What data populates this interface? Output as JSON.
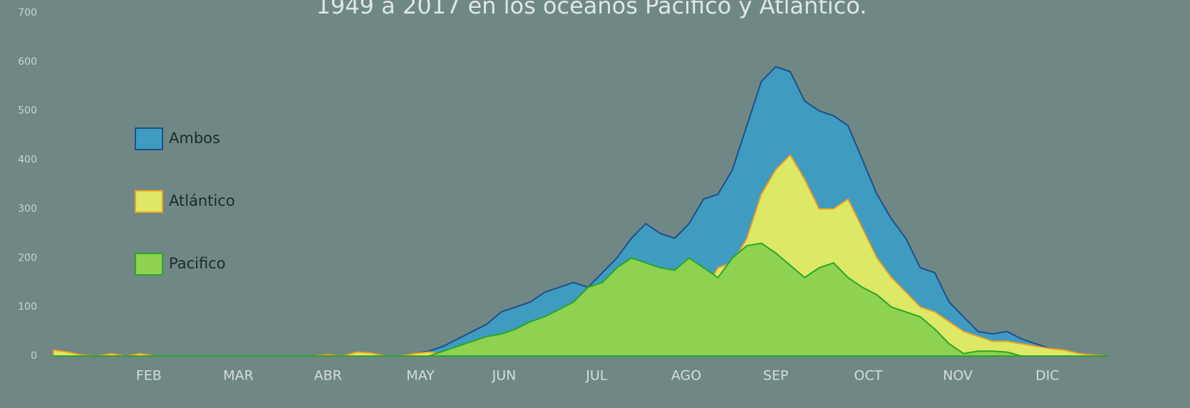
{
  "chart_data": {
    "type": "area",
    "title": "1949 a 2017 en los océanos Pacífico y Atlántico.",
    "x": [
      1,
      6,
      11,
      16,
      21,
      26,
      31,
      36,
      41,
      46,
      51,
      56,
      61,
      66,
      71,
      76,
      81,
      86,
      91,
      96,
      101,
      106,
      111,
      116,
      121,
      126,
      131,
      136,
      141,
      146,
      151,
      156,
      161,
      166,
      171,
      176,
      181,
      186,
      191,
      196,
      201,
      206,
      211,
      216,
      221,
      226,
      231,
      236,
      241,
      246,
      251,
      256,
      261,
      266,
      271,
      276,
      281,
      286,
      291,
      296,
      301,
      306,
      311,
      316,
      321,
      326,
      331,
      336,
      341,
      346,
      351,
      356,
      361,
      366
    ],
    "xlim": [
      1,
      366
    ],
    "xticks": [
      {
        "value": 34,
        "label": "FEB"
      },
      {
        "value": 65,
        "label": "MAR"
      },
      {
        "value": 96,
        "label": "ABR"
      },
      {
        "value": 128,
        "label": "MAY"
      },
      {
        "value": 157,
        "label": "JUN"
      },
      {
        "value": 189,
        "label": "JUL"
      },
      {
        "value": 220,
        "label": "AGO"
      },
      {
        "value": 251,
        "label": "SEP"
      },
      {
        "value": 283,
        "label": "OCT"
      },
      {
        "value": 314,
        "label": "NOV"
      },
      {
        "value": 345,
        "label": "DIC"
      }
    ],
    "ylim": [
      0,
      700
    ],
    "yticks": [
      0,
      100,
      200,
      300,
      400,
      500,
      600,
      700
    ],
    "legend": "left",
    "series": [
      {
        "name": "Ambos",
        "color": "#3f9cc0",
        "stroke": "#1d4f8c",
        "values": [
          12,
          8,
          2,
          0,
          5,
          0,
          5,
          0,
          0,
          0,
          0,
          0,
          0,
          0,
          0,
          0,
          0,
          0,
          0,
          3,
          0,
          8,
          6,
          0,
          0,
          5,
          10,
          20,
          35,
          50,
          65,
          90,
          100,
          110,
          130,
          140,
          150,
          140,
          170,
          200,
          240,
          270,
          250,
          240,
          270,
          320,
          330,
          380,
          470,
          560,
          590,
          580,
          520,
          500,
          490,
          470,
          400,
          330,
          280,
          240,
          180,
          170,
          110,
          80,
          50,
          45,
          50,
          35,
          25,
          15,
          12,
          5,
          2,
          0
        ]
      },
      {
        "name": "Atlántico",
        "color": "#dde866",
        "stroke": "#f0a020",
        "values": [
          12,
          8,
          2,
          0,
          5,
          0,
          5,
          0,
          0,
          0,
          0,
          0,
          0,
          0,
          0,
          0,
          0,
          0,
          0,
          3,
          0,
          8,
          6,
          0,
          0,
          5,
          8,
          5,
          5,
          5,
          10,
          10,
          15,
          20,
          25,
          30,
          40,
          50,
          60,
          70,
          80,
          90,
          100,
          110,
          120,
          130,
          180,
          190,
          240,
          330,
          380,
          410,
          360,
          300,
          300,
          320,
          260,
          200,
          160,
          130,
          100,
          90,
          70,
          50,
          40,
          30,
          30,
          25,
          20,
          15,
          12,
          5,
          2,
          0
        ]
      },
      {
        "name": "Pacifico",
        "color": "#8fd150",
        "stroke": "#2aa52a",
        "values": [
          0,
          0,
          0,
          0,
          0,
          0,
          0,
          0,
          0,
          0,
          0,
          0,
          0,
          0,
          0,
          0,
          0,
          0,
          0,
          0,
          0,
          0,
          0,
          0,
          0,
          0,
          0,
          10,
          20,
          30,
          40,
          45,
          55,
          70,
          80,
          95,
          110,
          140,
          150,
          180,
          200,
          190,
          180,
          175,
          200,
          180,
          160,
          200,
          225,
          230,
          210,
          185,
          160,
          180,
          190,
          160,
          140,
          125,
          100,
          90,
          80,
          55,
          25,
          5,
          10,
          10,
          8,
          0,
          0,
          0,
          0,
          0,
          0,
          0
        ]
      }
    ]
  }
}
